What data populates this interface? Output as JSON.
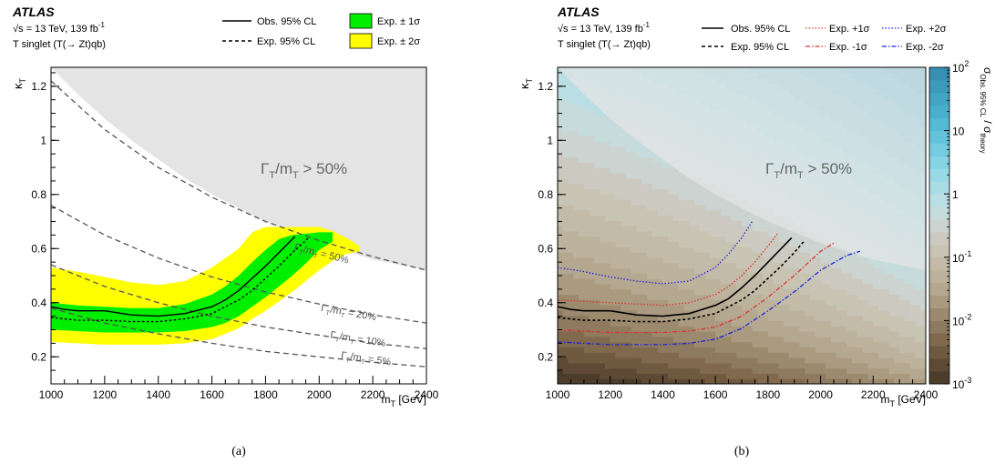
{
  "figure_captions": [
    "(a)",
    "(b)"
  ],
  "colors": {
    "band1": "#00ee00",
    "band2": "#ffff00",
    "excluded": "#e4e4e4",
    "obs": "#000000",
    "exp_p1": "#dd3333",
    "exp_p2": "#2222dd",
    "exp_m1": "#dd3333",
    "exp_m2": "#2222dd",
    "width_contour": "#555555"
  },
  "chart_data": [
    {
      "type": "line",
      "panel": "a",
      "header": {
        "experiment": "ATLAS",
        "energy_prefix": "s",
        "energy_text": " = 13 TeV, 139 fb",
        "lumi_exp": "-1",
        "model": "T singlet (T(→ Zt)qb)"
      },
      "xlabel": "m",
      "xlabel_sub": "T",
      "xlabel_unit": " [GeV]",
      "ylabel": "κ",
      "ylabel_sub": "T",
      "xlim": [
        1000,
        2400
      ],
      "ylim": [
        0.1,
        1.27
      ],
      "xticks": [
        1000,
        1200,
        1400,
        1600,
        1800,
        2000,
        2200,
        2400
      ],
      "yticks": [
        0.2,
        0.4,
        0.6,
        0.8,
        1.0,
        1.2
      ],
      "ytick_labels": [
        "0.2",
        "0.4",
        "0.6",
        "0.8",
        "1",
        "1.2"
      ],
      "legend": [
        {
          "label": "Obs. 95% CL",
          "style": "solid"
        },
        {
          "label": "Exp. 95% CL",
          "style": "dashed"
        },
        {
          "label": "Exp. ± 1σ",
          "style": "band1"
        },
        {
          "label": "Exp. ± 2σ",
          "style": "band2"
        }
      ],
      "region_label": {
        "text": "Γ",
        "sub1": "T",
        "mid": "/m",
        "sub2": "T",
        "tail": " > 50%"
      },
      "excluded_boundary": {
        "x": [
          1000,
          1100,
          1200,
          1300,
          1400,
          1500,
          1600,
          1700,
          1800,
          1900,
          2000,
          2100,
          2200,
          2300,
          2400
        ],
        "y": [
          1.27,
          1.17,
          1.08,
          1.0,
          0.93,
          0.86,
          0.8,
          0.75,
          0.7,
          0.66,
          0.62,
          0.59,
          0.56,
          0.54,
          0.52
        ]
      },
      "width_contours": [
        {
          "label": "50%",
          "x": [
            1000,
            1200,
            1400,
            1600,
            1800,
            2000,
            2200,
            2400
          ],
          "y": [
            1.22,
            1.04,
            0.9,
            0.79,
            0.7,
            0.63,
            0.57,
            0.52
          ]
        },
        {
          "label": "20%",
          "x": [
            1000,
            1200,
            1400,
            1600,
            1800,
            2000,
            2200,
            2400
          ],
          "y": [
            0.76,
            0.65,
            0.565,
            0.495,
            0.44,
            0.395,
            0.355,
            0.325
          ]
        },
        {
          "label": "10%",
          "x": [
            1000,
            1200,
            1400,
            1600,
            1800,
            2000,
            2200,
            2400
          ],
          "y": [
            0.54,
            0.46,
            0.4,
            0.35,
            0.31,
            0.28,
            0.25,
            0.23
          ]
        },
        {
          "label": "5%",
          "x": [
            1000,
            1200,
            1400,
            1600,
            1800,
            2000,
            2200,
            2400
          ],
          "y": [
            0.38,
            0.325,
            0.285,
            0.25,
            0.22,
            0.2,
            0.18,
            0.163
          ]
        }
      ],
      "width_contour_labels": [
        {
          "text": "Γ",
          "sub1": "T",
          "mid": "/m",
          "sub2": "T",
          "tail": " = 50%",
          "x": 1905,
          "y": 0.595
        },
        {
          "text": "Γ",
          "sub1": "T",
          "mid": "/m",
          "sub2": "T",
          "tail": " = 20%",
          "x": 2005,
          "y": 0.37
        },
        {
          "text": "Γ",
          "sub1": "T",
          "mid": "/m",
          "sub2": "T",
          "tail": " = 10%",
          "x": 2040,
          "y": 0.27
        },
        {
          "text": "Γ",
          "sub1": "T",
          "mid": "/m",
          "sub2": "T",
          "tail": " = 5%",
          "x": 2080,
          "y": 0.195
        }
      ],
      "observed": {
        "x": [
          1000,
          1050,
          1100,
          1200,
          1300,
          1400,
          1500,
          1600,
          1650,
          1700,
          1750,
          1800,
          1850,
          1900,
          1910
        ],
        "y": [
          0.385,
          0.375,
          0.37,
          0.37,
          0.355,
          0.35,
          0.36,
          0.385,
          0.41,
          0.445,
          0.49,
          0.535,
          0.585,
          0.635,
          0.645
        ]
      },
      "expected": {
        "x": [
          1000,
          1100,
          1200,
          1300,
          1400,
          1500,
          1600,
          1700,
          1750,
          1800,
          1850,
          1900,
          1950,
          1960
        ],
        "y": [
          0.345,
          0.335,
          0.335,
          0.33,
          0.33,
          0.34,
          0.36,
          0.41,
          0.445,
          0.49,
          0.535,
          0.585,
          0.63,
          0.64
        ]
      },
      "band_1sigma": {
        "x": [
          1000,
          1100,
          1200,
          1300,
          1400,
          1500,
          1600,
          1650,
          1700,
          1750,
          1800,
          1850,
          1900,
          1950,
          2000,
          2050
        ],
        "low": [
          0.3,
          0.295,
          0.29,
          0.29,
          0.29,
          0.295,
          0.31,
          0.325,
          0.35,
          0.385,
          0.42,
          0.46,
          0.5,
          0.545,
          0.595,
          0.625
        ],
        "high": [
          0.4,
          0.39,
          0.385,
          0.38,
          0.38,
          0.395,
          0.43,
          0.46,
          0.5,
          0.55,
          0.595,
          0.635,
          0.65,
          0.655,
          0.66,
          0.66
        ]
      },
      "band_2sigma": {
        "x": [
          1000,
          1100,
          1200,
          1300,
          1400,
          1500,
          1600,
          1700,
          1750,
          1800,
          1850,
          1900,
          1950,
          2000,
          2050,
          2100,
          2150
        ],
        "low": [
          0.255,
          0.25,
          0.245,
          0.245,
          0.245,
          0.25,
          0.265,
          0.305,
          0.34,
          0.37,
          0.405,
          0.44,
          0.48,
          0.52,
          0.555,
          0.58,
          0.59
        ],
        "high": [
          0.53,
          0.515,
          0.495,
          0.475,
          0.465,
          0.48,
          0.53,
          0.6,
          0.66,
          0.68,
          0.68,
          0.68,
          0.68,
          0.68,
          0.665,
          0.64,
          0.61
        ]
      }
    },
    {
      "type": "heatmap",
      "panel": "b",
      "header": {
        "experiment": "ATLAS",
        "energy_prefix": "s",
        "energy_text": " = 13 TeV, 139 fb",
        "lumi_exp": "-1",
        "model": "T singlet (T(→ Zt)qb)"
      },
      "xlabel": "m",
      "xlabel_sub": "T",
      "xlabel_unit": " [GeV]",
      "ylabel": "κ",
      "ylabel_sub": "T",
      "zlabel": "σ",
      "zlabel_sub": "Obs. 95% CL",
      "zlabel_tail": " / σ",
      "zlabel_sub2": "theory",
      "xlim": [
        1000,
        2400
      ],
      "ylim": [
        0.1,
        1.27
      ],
      "zlim": [
        0.001,
        100
      ],
      "zscale": "log",
      "xticks": [
        1000,
        1200,
        1400,
        1600,
        1800,
        2000,
        2200,
        2400
      ],
      "yticks": [
        0.2,
        0.4,
        0.6,
        0.8,
        1.0,
        1.2
      ],
      "ytick_labels": [
        "0.2",
        "0.4",
        "0.6",
        "0.8",
        "1",
        "1.2"
      ],
      "zticks": [
        {
          "base": "10",
          "exp": "-3",
          "v": 0.001
        },
        {
          "base": "10",
          "exp": "-2",
          "v": 0.01
        },
        {
          "base": "10",
          "exp": "-1",
          "v": 0.1
        },
        {
          "base": "1",
          "exp": "",
          "v": 1
        },
        {
          "base": "10",
          "exp": "",
          "v": 10
        },
        {
          "base": "10",
          "exp": "2",
          "v": 100
        }
      ],
      "colormap": [
        "#4c3c2a",
        "#5e4a34",
        "#6f5a40",
        "#80694d",
        "#8e7a5e",
        "#9c8a6e",
        "#a99a80",
        "#b5a890",
        "#bdb39d",
        "#c3bba8",
        "#c8c4b4",
        "#cccac0",
        "#cbd4d0",
        "#c6dbdb",
        "#b9dee3",
        "#a9dde6",
        "#98d9e6",
        "#86d3e3",
        "#74cce0",
        "#63c3db",
        "#55bad5",
        "#4aafcd",
        "#42a5c5",
        "#3c9abd",
        "#378fb4"
      ],
      "legend": [
        {
          "label": "Obs. 95% CL",
          "style": "solid",
          "color": "#000000"
        },
        {
          "label": "Exp. 95% CL",
          "style": "dashed",
          "color": "#000000"
        },
        {
          "label": "Exp. +1σ",
          "style": "dot",
          "color": "#dd3333"
        },
        {
          "label": "Exp. -1σ",
          "style": "dashdot",
          "color": "#dd3333"
        },
        {
          "label": "Exp. +2σ",
          "style": "dot",
          "color": "#2222dd"
        },
        {
          "label": "Exp. -2σ",
          "style": "dashdot",
          "color": "#2222dd"
        }
      ],
      "region_label": {
        "text": "Γ",
        "sub1": "T",
        "mid": "/m",
        "sub2": "T",
        "tail": " > 50%"
      },
      "excluded_boundary": {
        "x": [
          1000,
          1100,
          1200,
          1300,
          1400,
          1500,
          1600,
          1700,
          1800,
          1900,
          2000,
          2100,
          2200,
          2300,
          2400
        ],
        "y": [
          1.27,
          1.17,
          1.08,
          1.0,
          0.93,
          0.86,
          0.8,
          0.75,
          0.7,
          0.66,
          0.62,
          0.59,
          0.56,
          0.54,
          0.52
        ]
      },
      "observed": {
        "x": [
          1000,
          1050,
          1100,
          1200,
          1300,
          1400,
          1500,
          1600,
          1650,
          1700,
          1750,
          1800,
          1850,
          1890
        ],
        "y": [
          0.385,
          0.375,
          0.37,
          0.37,
          0.355,
          0.35,
          0.36,
          0.39,
          0.415,
          0.455,
          0.5,
          0.55,
          0.6,
          0.64
        ]
      },
      "expected": {
        "x": [
          1000,
          1100,
          1200,
          1300,
          1400,
          1500,
          1600,
          1700,
          1750,
          1800,
          1850,
          1900,
          1935
        ],
        "y": [
          0.345,
          0.335,
          0.335,
          0.33,
          0.33,
          0.34,
          0.36,
          0.41,
          0.445,
          0.49,
          0.535,
          0.585,
          0.625
        ]
      },
      "exp_plus1": {
        "x": [
          1000,
          1100,
          1200,
          1300,
          1400,
          1500,
          1600,
          1650,
          1700,
          1750,
          1800,
          1840
        ],
        "y": [
          0.41,
          0.405,
          0.4,
          0.395,
          0.39,
          0.4,
          0.43,
          0.46,
          0.5,
          0.55,
          0.61,
          0.66
        ]
      },
      "exp_minus1": {
        "x": [
          1000,
          1100,
          1200,
          1300,
          1400,
          1500,
          1600,
          1700,
          1800,
          1900,
          1950,
          2000,
          2050
        ],
        "y": [
          0.3,
          0.295,
          0.29,
          0.29,
          0.29,
          0.295,
          0.31,
          0.35,
          0.42,
          0.5,
          0.545,
          0.59,
          0.62
        ]
      },
      "exp_plus2": {
        "x": [
          1000,
          1100,
          1200,
          1300,
          1400,
          1500,
          1600,
          1650,
          1700,
          1740
        ],
        "y": [
          0.53,
          0.515,
          0.495,
          0.48,
          0.47,
          0.48,
          0.53,
          0.58,
          0.64,
          0.7
        ]
      },
      "exp_minus2": {
        "x": [
          1000,
          1100,
          1200,
          1300,
          1400,
          1500,
          1600,
          1700,
          1800,
          1900,
          2000,
          2100,
          2150
        ],
        "y": [
          0.255,
          0.25,
          0.245,
          0.245,
          0.245,
          0.25,
          0.265,
          0.305,
          0.37,
          0.44,
          0.52,
          0.575,
          0.59
        ]
      }
    }
  ]
}
